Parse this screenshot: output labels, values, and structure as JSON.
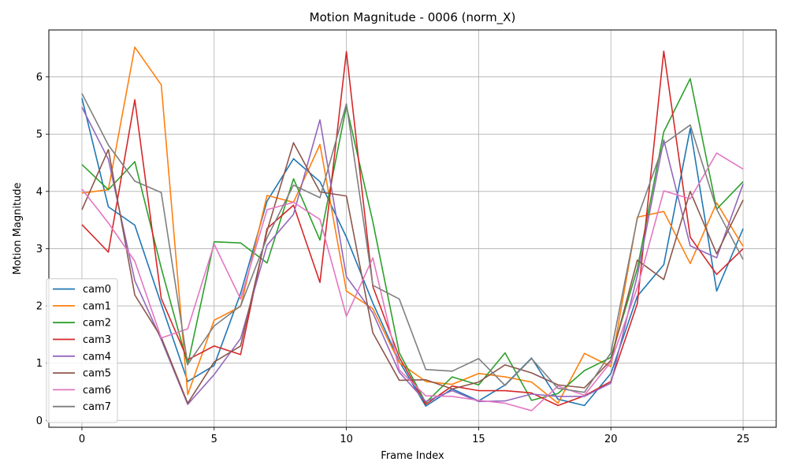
{
  "chart_data": {
    "type": "line",
    "title": "Motion Magnitude - 0006 (norm_X)",
    "xlabel": "Frame Index",
    "ylabel": "Motion Magnitude",
    "xlim": [
      -1.25,
      26.25
    ],
    "ylim": [
      -0.12,
      6.82
    ],
    "xticks": [
      0,
      5,
      10,
      15,
      20,
      25
    ],
    "yticks": [
      0,
      1,
      2,
      3,
      4,
      5,
      6
    ],
    "grid": true,
    "legend_position": "lower-left",
    "x": [
      0,
      1,
      2,
      3,
      4,
      5,
      6,
      7,
      8,
      9,
      10,
      11,
      12,
      13,
      14,
      15,
      16,
      17,
      18,
      19,
      20,
      21,
      22,
      23,
      24,
      25
    ],
    "series": [
      {
        "name": "cam0",
        "color": "#1f77b4",
        "values": [
          5.63,
          3.73,
          3.41,
          2.03,
          0.68,
          0.96,
          2.22,
          3.83,
          4.57,
          4.17,
          3.2,
          2.05,
          1.03,
          0.25,
          0.55,
          0.34,
          0.62,
          1.09,
          0.37,
          0.26,
          0.82,
          2.17,
          2.72,
          5.1,
          2.26,
          3.35
        ]
      },
      {
        "name": "cam1",
        "color": "#ff7f0e",
        "values": [
          3.97,
          4.03,
          6.52,
          5.86,
          0.45,
          1.75,
          1.99,
          3.93,
          3.81,
          4.82,
          2.26,
          1.95,
          1.01,
          0.68,
          0.63,
          0.82,
          0.76,
          0.67,
          0.3,
          1.17,
          0.94,
          3.55,
          3.65,
          2.74,
          3.8,
          3.04
        ]
      },
      {
        "name": "cam2",
        "color": "#2ca02c",
        "values": [
          4.47,
          4.03,
          4.52,
          2.66,
          0.97,
          3.12,
          3.1,
          2.75,
          4.22,
          3.15,
          5.49,
          3.47,
          1.18,
          0.31,
          0.76,
          0.62,
          1.18,
          0.35,
          0.47,
          0.87,
          1.1,
          2.65,
          5.04,
          5.97,
          3.69,
          4.17
        ]
      },
      {
        "name": "cam3",
        "color": "#d62728",
        "values": [
          3.42,
          2.94,
          5.6,
          2.13,
          1.06,
          1.3,
          1.15,
          3.35,
          3.76,
          2.41,
          6.44,
          2.34,
          1.1,
          0.28,
          0.6,
          0.52,
          0.52,
          0.48,
          0.26,
          0.43,
          0.68,
          2.04,
          6.45,
          3.2,
          2.55,
          3.0
        ]
      },
      {
        "name": "cam4",
        "color": "#9467bd",
        "values": [
          5.47,
          4.56,
          2.44,
          1.41,
          0.28,
          0.8,
          1.43,
          3.06,
          3.6,
          5.25,
          2.51,
          1.88,
          0.84,
          0.33,
          0.52,
          0.33,
          0.34,
          0.46,
          0.42,
          0.42,
          0.65,
          2.53,
          4.9,
          3.05,
          2.84,
          4.13
        ]
      },
      {
        "name": "cam5",
        "color": "#8c564b",
        "values": [
          3.68,
          4.73,
          2.19,
          1.45,
          0.3,
          1.02,
          1.3,
          3.31,
          4.85,
          3.99,
          3.92,
          1.53,
          0.7,
          0.71,
          0.55,
          0.67,
          0.97,
          0.83,
          0.62,
          0.57,
          1.05,
          2.8,
          2.46,
          4.0,
          2.91,
          3.85
        ]
      },
      {
        "name": "cam6",
        "color": "#e377c2",
        "values": [
          4.04,
          3.45,
          2.78,
          1.44,
          1.6,
          3.08,
          2.12,
          3.68,
          3.81,
          3.51,
          1.82,
          2.84,
          0.88,
          0.43,
          0.42,
          0.35,
          0.3,
          0.17,
          0.6,
          0.44,
          1.02,
          2.32,
          4.01,
          3.87,
          4.67,
          4.39
        ]
      },
      {
        "name": "cam7",
        "color": "#7f7f7f",
        "values": [
          5.71,
          4.81,
          4.18,
          3.98,
          0.98,
          1.65,
          2.0,
          3.19,
          4.11,
          3.89,
          5.53,
          2.36,
          2.12,
          0.89,
          0.86,
          1.08,
          0.61,
          1.08,
          0.56,
          0.49,
          1.18,
          3.53,
          4.83,
          5.16,
          3.69,
          2.81
        ]
      }
    ]
  }
}
